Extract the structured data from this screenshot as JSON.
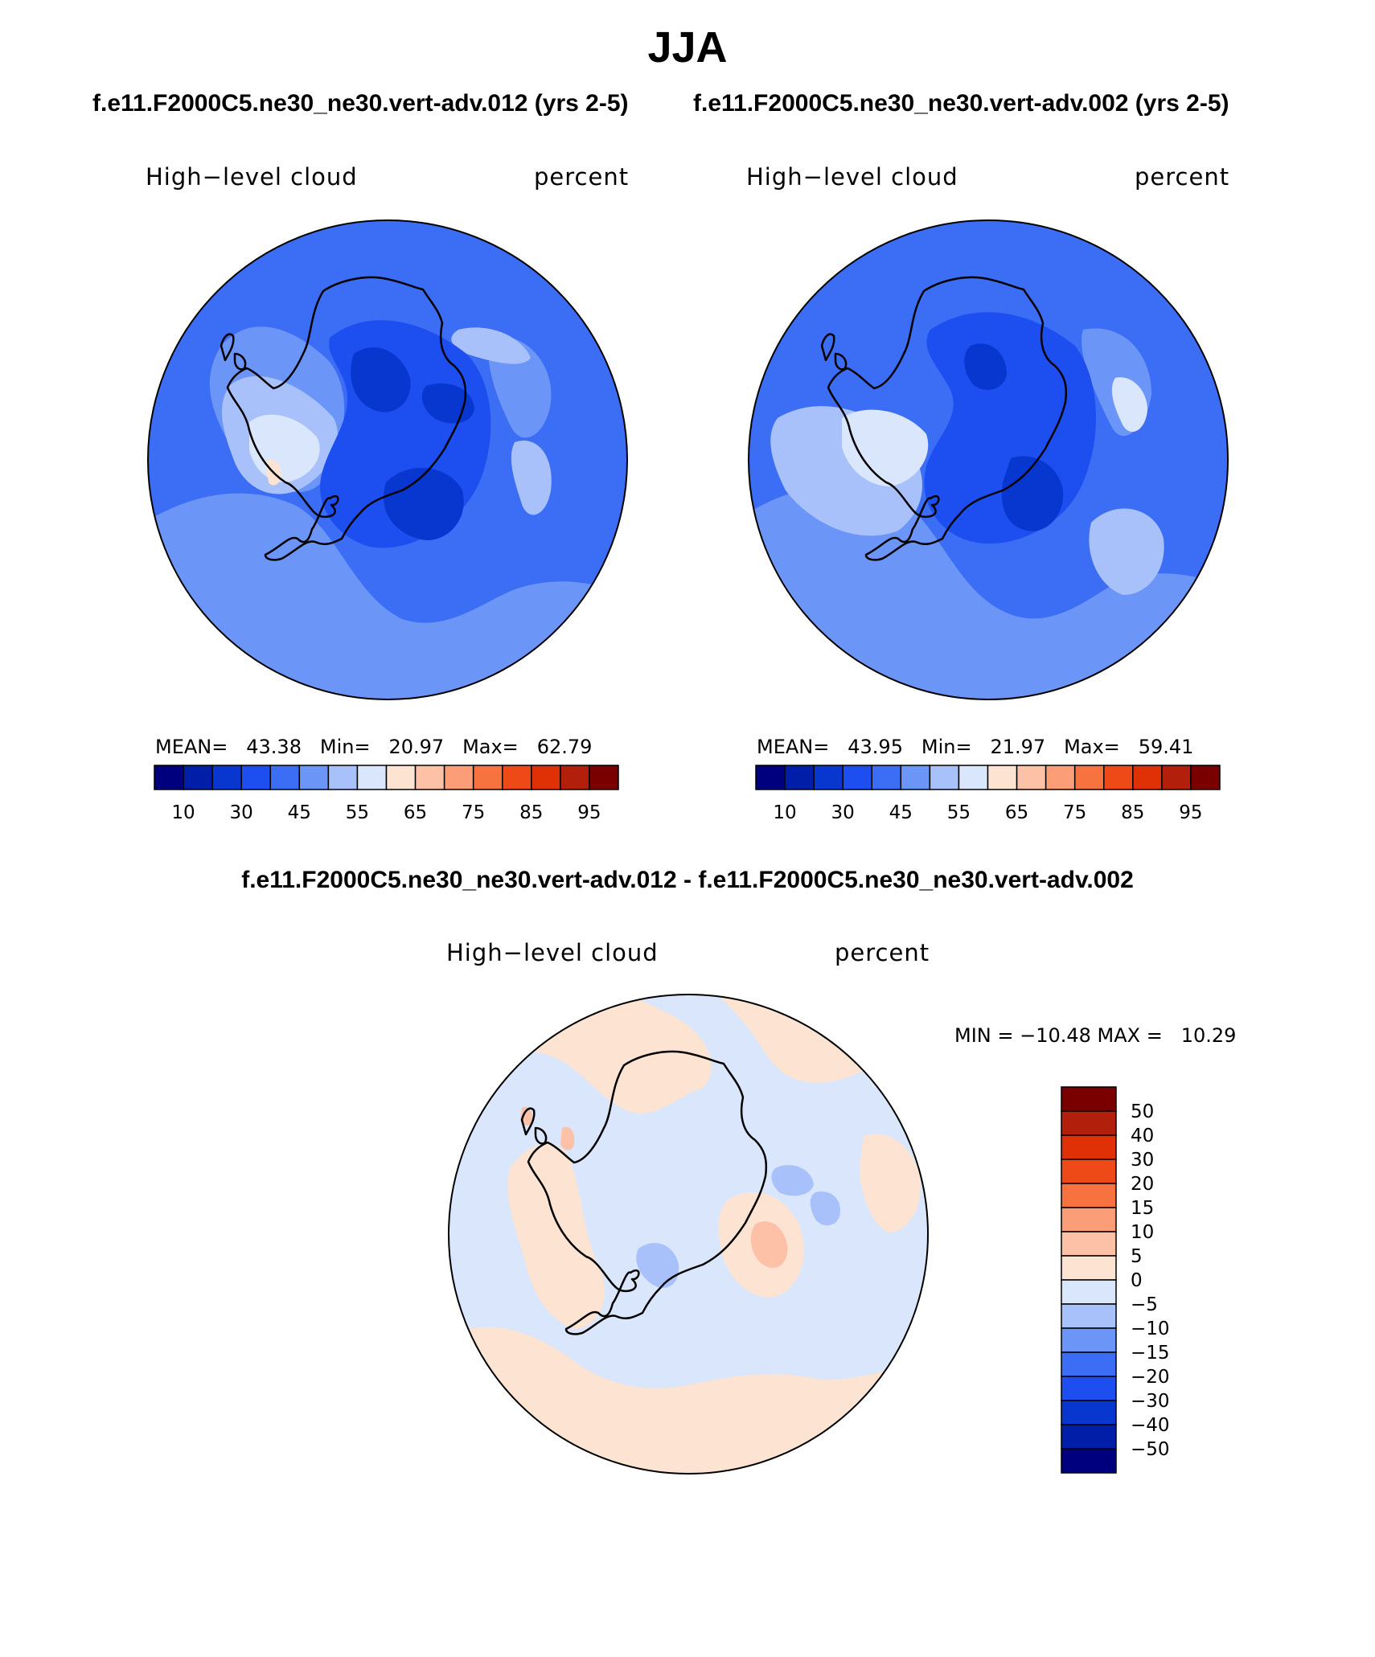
{
  "title": "JJA",
  "case1_label": "f.e11.F2000C5.ne30_ne30.vert-adv.012 (yrs 2-5)",
  "case2_label": "f.e11.F2000C5.ne30_ne30.vert-adv.002 (yrs 2-5)",
  "diff_title": "f.e11.F2000C5.ne30_ne30.vert-adv.012 - f.e11.F2000C5.ne30_ne30.vert-adv.002",
  "panels": [
    {
      "variable": "High−level cloud",
      "units": "percent",
      "mean_label": "MEAN=",
      "mean": "43.38",
      "min_label": "Min=",
      "min": "20.97",
      "max_label": "Max=",
      "max": "62.79"
    },
    {
      "variable": "High−level cloud",
      "units": "percent",
      "mean_label": "MEAN=",
      "mean": "43.95",
      "min_label": "Min=",
      "min": "21.97",
      "max_label": "Max=",
      "max": "59.41"
    }
  ],
  "diff_panel": {
    "variable": "High−level cloud",
    "units": "percent",
    "minmax_text": "MIN = −10.48 MAX =   10.29"
  },
  "colorbar_main": {
    "colors": [
      "#00007f",
      "#001ea8",
      "#0837d0",
      "#1d4ff0",
      "#3b6ef5",
      "#6b95f7",
      "#a8c1fa",
      "#d9e6fc",
      "#fde3d2",
      "#fcc1a6",
      "#fb9e78",
      "#f6723f",
      "#ee4a17",
      "#df3006",
      "#b2200b",
      "#7a0000"
    ],
    "tick_labels": [
      "10",
      "30",
      "45",
      "55",
      "65",
      "75",
      "85",
      "95"
    ]
  },
  "colorbar_diff": {
    "colors": [
      "#7a0000",
      "#b2200b",
      "#df3006",
      "#ee4a17",
      "#f6723f",
      "#fb9e78",
      "#fcc1a6",
      "#fde3d2",
      "#d9e6fc",
      "#a8c1fa",
      "#6b95f7",
      "#3b6ef5",
      "#1d4ff0",
      "#0837d0",
      "#001ea8",
      "#00007f"
    ],
    "tick_labels": [
      "50",
      "40",
      "30",
      "20",
      "15",
      "10",
      "5",
      "0",
      "−5",
      "−10",
      "−15",
      "−20",
      "−30",
      "−40",
      "−50"
    ]
  },
  "fill_colors": {
    "base": "#3b6ef5",
    "dark": "#1d4ff0",
    "darker": "#0837d0",
    "light": "#6b95f7",
    "lighter": "#a8c1fa",
    "pale": "#d9e6fc",
    "warm": "#fde3d2",
    "warm2": "#fcc1a6"
  }
}
